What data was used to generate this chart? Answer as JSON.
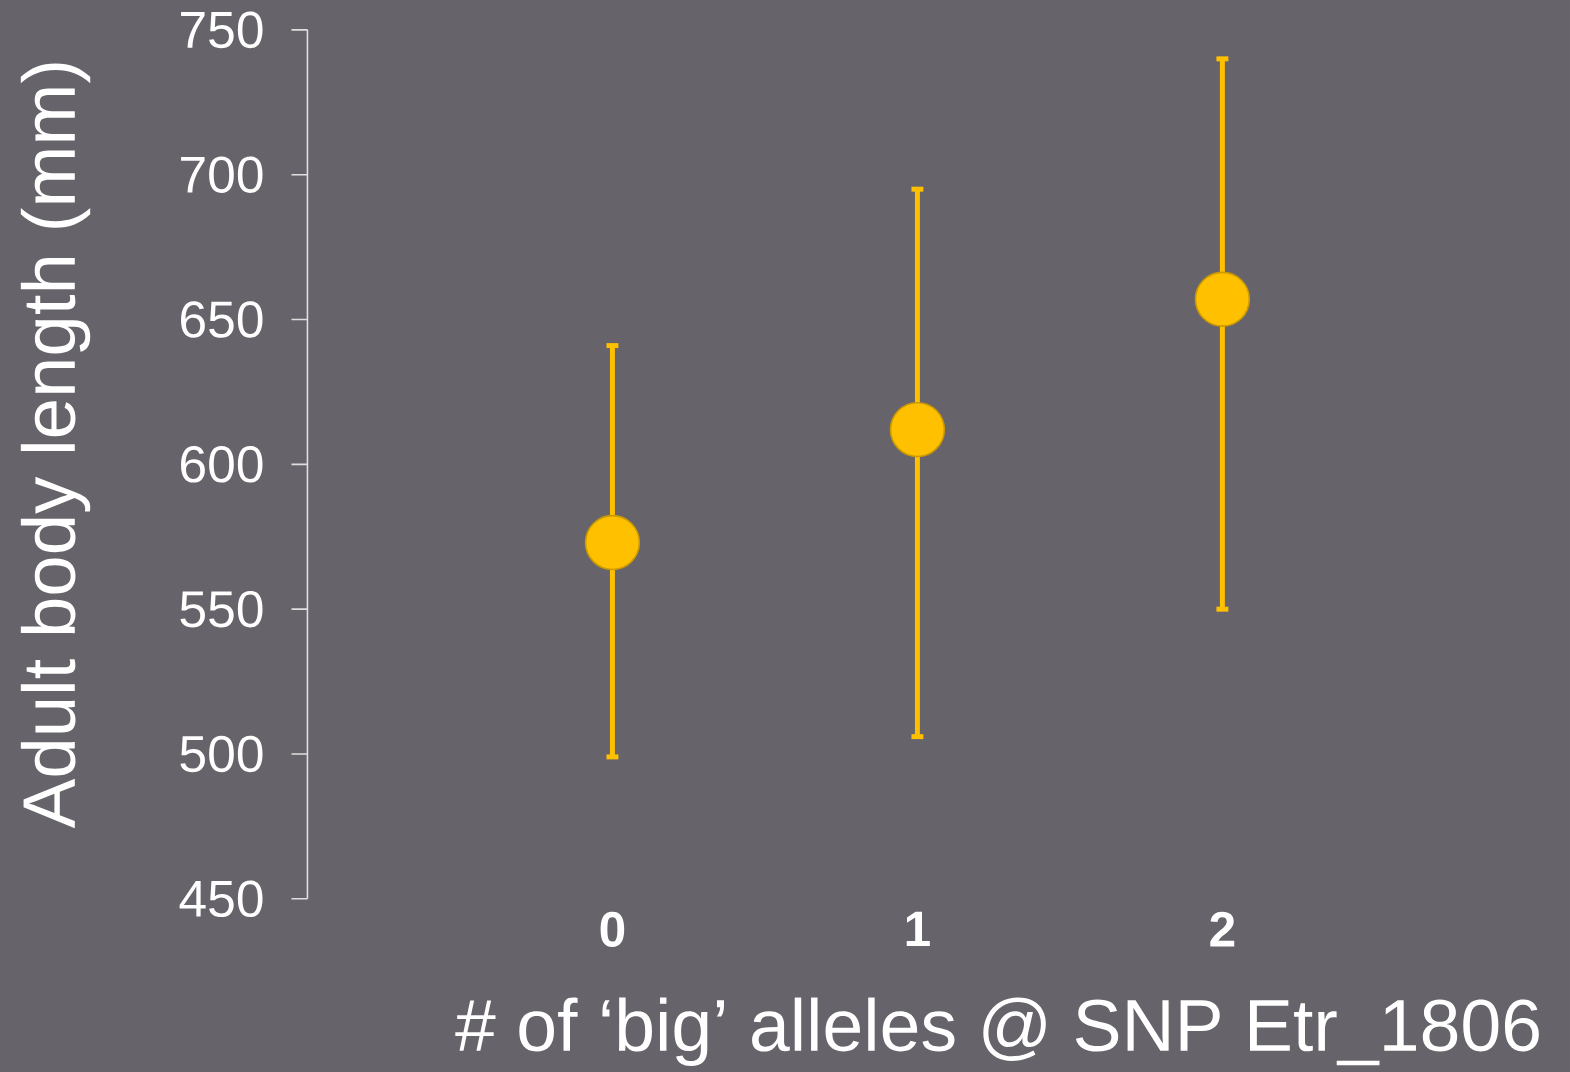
{
  "chart_data": {
    "type": "scatter",
    "xlabel": "# of ‘big’ alleles @ SNP Etr_1806",
    "ylabel": "Adult body length (mm)",
    "categories": [
      "0",
      "1",
      "2"
    ],
    "values": [
      573,
      612,
      657
    ],
    "errors": [
      [
        499,
        641
      ],
      [
        506,
        695
      ],
      [
        550,
        740
      ]
    ],
    "color": "#ffc000",
    "marker": "circle",
    "ylim": [
      450,
      750
    ],
    "yticks": [
      450,
      500,
      550,
      600,
      650,
      700,
      750
    ]
  }
}
